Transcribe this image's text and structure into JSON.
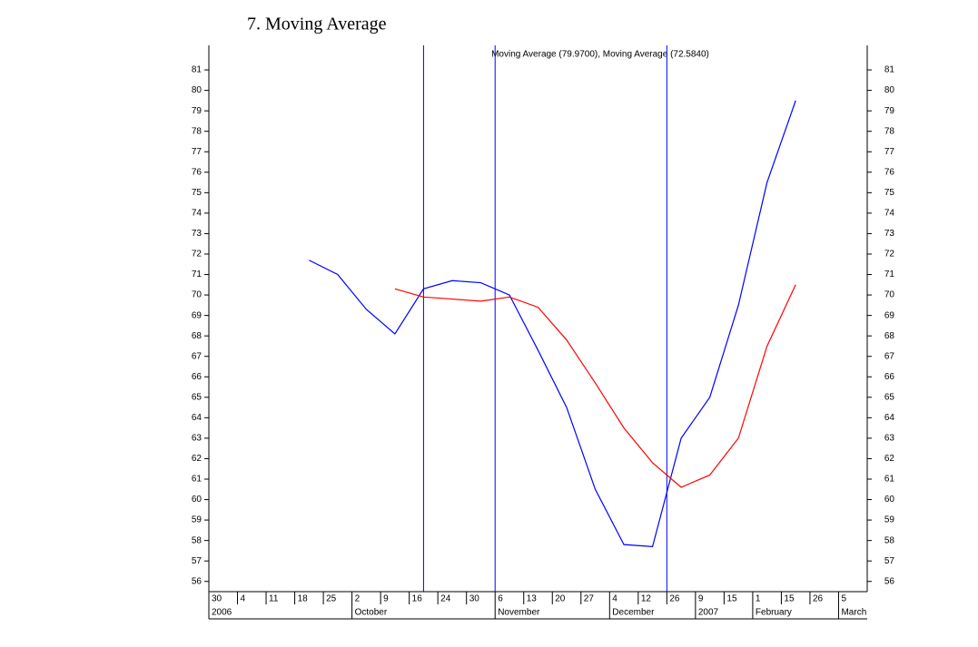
{
  "heading": "7.    Moving Average",
  "chart_data": {
    "type": "line",
    "title": "Moving Average (79.9700), Moving Average (72.5840)",
    "categories": [
      "30",
      "4",
      "11",
      "18",
      "25",
      "2",
      "9",
      "16",
      "24",
      "30",
      "6",
      "13",
      "20",
      "27",
      "4",
      "12",
      "26",
      "9",
      "15",
      "1",
      "15",
      "26",
      "5"
    ],
    "group_labels": [
      "2006",
      null,
      null,
      null,
      null,
      "October",
      null,
      null,
      null,
      null,
      "November",
      null,
      null,
      null,
      "December",
      null,
      null,
      "2007",
      null,
      "February",
      null,
      null,
      "March"
    ],
    "series": [
      {
        "name": "Moving Average (79.9700)",
        "color": "#0000ff",
        "values": [
          null,
          null,
          null,
          71.7,
          71.0,
          69.3,
          68.1,
          70.3,
          70.7,
          70.6,
          70.0,
          67.3,
          64.5,
          60.5,
          57.8,
          57.7,
          63.0,
          65.0,
          69.5,
          75.5,
          79.5,
          null,
          null
        ]
      },
      {
        "name": "Moving Average (72.5840)",
        "color": "#ff0000",
        "values": [
          null,
          null,
          null,
          null,
          null,
          null,
          70.3,
          69.9,
          69.8,
          69.7,
          69.9,
          69.4,
          67.8,
          65.7,
          63.5,
          61.8,
          60.6,
          61.2,
          63.0,
          67.5,
          70.5,
          null,
          null
        ]
      }
    ],
    "marker_line_color": "#0000ff",
    "ylim": [
      55.5,
      82.2
    ],
    "yticks": [
      56,
      57,
      58,
      59,
      60,
      61,
      62,
      63,
      64,
      65,
      66,
      67,
      68,
      69,
      70,
      71,
      72,
      73,
      74,
      75,
      76,
      77,
      78,
      79,
      80,
      81
    ]
  }
}
